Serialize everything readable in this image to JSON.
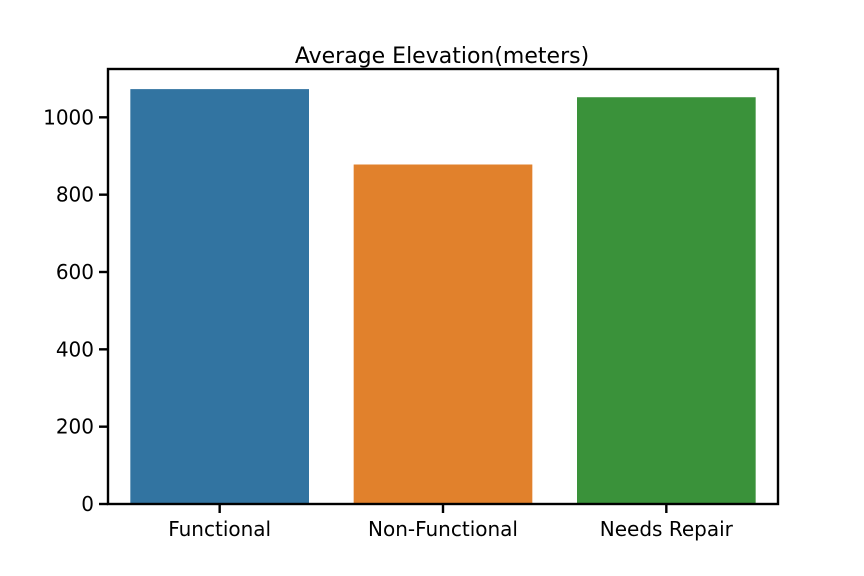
{
  "chart_data": {
    "type": "bar",
    "title": "Average Elevation(meters)",
    "xlabel": "",
    "ylabel": "",
    "categories": [
      "Functional",
      "Non-Functional",
      "Needs Repair"
    ],
    "values": [
      1073,
      878,
      1052
    ],
    "colors": [
      "#3274a1",
      "#e1812c",
      "#3a923a"
    ],
    "ylim": [
      0,
      1125
    ],
    "yticks": [
      0,
      200,
      400,
      600,
      800,
      1000
    ],
    "grid": false,
    "legend": "none"
  }
}
